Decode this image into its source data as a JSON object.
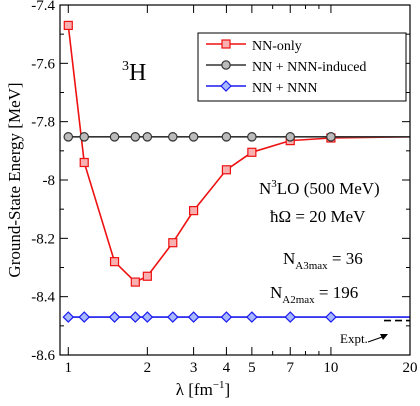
{
  "chart_data": {
    "type": "line",
    "title": "",
    "xlabel": "λ [fm",
    "xlabel_sup": "−1",
    "xlabel_close": "]",
    "ylabel": "Ground-State Energy [MeV]",
    "xscale": "log",
    "xlim": [
      0.93,
      20
    ],
    "ylim": [
      -8.6,
      -7.4
    ],
    "x_ticks": [
      1,
      2,
      3,
      4,
      5,
      7,
      10,
      20
    ],
    "x_tick_labels": [
      "1",
      "2",
      "3",
      "4",
      "5",
      "7",
      "10",
      "20"
    ],
    "y_ticks": [
      -8.6,
      -8.4,
      -8.2,
      -8.0,
      -7.8,
      -7.6,
      -7.4
    ],
    "y_tick_labels": [
      "-8.6",
      "-8.4",
      "-8.2",
      "-8",
      "-7.8",
      "-7.6",
      "-7.4"
    ],
    "grid": false,
    "legend_position": "top-right",
    "series": [
      {
        "name": "NN-only",
        "color": "#ee1111",
        "marker": "square",
        "x": [
          1.0,
          1.15,
          1.5,
          1.8,
          2.0,
          2.5,
          3.0,
          4.0,
          5.0,
          7.0,
          10.0
        ],
        "y": [
          -7.47,
          -7.94,
          -8.28,
          -8.35,
          -8.33,
          -8.215,
          -8.105,
          -7.965,
          -7.905,
          -7.865,
          -7.856
        ]
      },
      {
        "name": "NN + NNN-induced",
        "color": "#333333",
        "marker": "circle",
        "x": [
          1.0,
          1.15,
          1.5,
          1.8,
          2.0,
          2.5,
          3.0,
          4.0,
          5.0,
          7.0,
          10.0
        ],
        "y": [
          -7.852,
          -7.852,
          -7.852,
          -7.852,
          -7.852,
          -7.852,
          -7.852,
          -7.852,
          -7.852,
          -7.852,
          -7.852
        ]
      },
      {
        "name": "NN + NNN",
        "color": "#1a1aee",
        "marker": "diamond",
        "x": [
          1.0,
          1.15,
          1.5,
          1.8,
          2.0,
          2.5,
          3.0,
          4.0,
          5.0,
          7.0,
          10.0
        ],
        "y": [
          -8.47,
          -8.47,
          -8.47,
          -8.47,
          -8.47,
          -8.47,
          -8.47,
          -8.47,
          -8.47,
          -8.47,
          -8.47
        ]
      }
    ],
    "reference_line": {
      "label": "Expt.",
      "y": -8.482
    },
    "extend_y": -7.852
  },
  "annotations": {
    "nucleus_sup": "3",
    "nucleus": "H",
    "interaction_main": "N",
    "interaction_sup": "3",
    "interaction_rest": "LO (500 MeV)",
    "hbar_omega": "ħΩ = 20 MeV",
    "n3_main": "N",
    "n3_sub": "A3max",
    "n3_value": " = 36",
    "n2_main": "N",
    "n2_sub": "A2max",
    "n2_value": " = 196",
    "expt": "Expt."
  }
}
